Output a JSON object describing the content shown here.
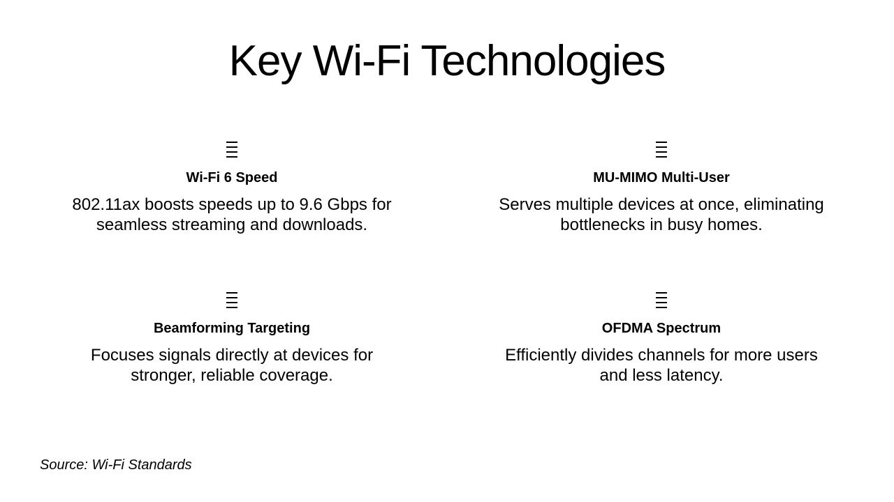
{
  "title": "Key Wi-Fi Technologies",
  "cards": [
    {
      "icon": "menu-lines-icon",
      "title": "Wi-Fi 6 Speed",
      "desc": "802.11ax boosts speeds up to 9.6 Gbps for seamless streaming and downloads."
    },
    {
      "icon": "menu-lines-icon",
      "title": "MU-MIMO Multi-User",
      "desc": "Serves multiple devices at once, eliminating bottlenecks in busy homes."
    },
    {
      "icon": "menu-lines-icon",
      "title": "Beamforming Targeting",
      "desc": "Focuses signals directly at devices for stronger, reliable coverage."
    },
    {
      "icon": "menu-lines-icon",
      "title": "OFDMA Spectrum",
      "desc": "Efficiently divides channels for more users and less latency."
    }
  ],
  "source": "Source: Wi-Fi Standards"
}
